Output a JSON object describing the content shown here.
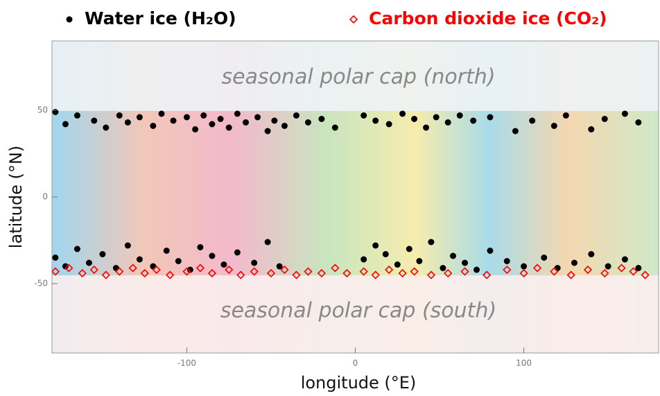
{
  "chart_data": {
    "type": "scatter",
    "xlabel": "longitude (°E)",
    "ylabel": "latitude (°N)",
    "annotations": [
      "seasonal polar cap (north)",
      "seasonal polar cap (south)"
    ],
    "xlim": [
      -180,
      180
    ],
    "ylim": [
      -90,
      90
    ],
    "xticks": [
      -100,
      0,
      100
    ],
    "yticks": [
      -50,
      0,
      50
    ],
    "series": [
      {
        "name": "Water ice (H₂O)",
        "color": "#000000",
        "marker": "circle",
        "x": [
          -178,
          -172,
          -165,
          -155,
          -148,
          -140,
          -135,
          -128,
          -120,
          -115,
          -108,
          -100,
          -95,
          -90,
          -85,
          -80,
          -75,
          -70,
          -65,
          -58,
          -52,
          -48,
          -42,
          -35,
          -28,
          -20,
          -12,
          5,
          12,
          20,
          28,
          35,
          42,
          48,
          55,
          62,
          70,
          80,
          95,
          105,
          118,
          125,
          140,
          148,
          160,
          168,
          -178,
          -172,
          -165,
          -158,
          -150,
          -142,
          -135,
          -128,
          -120,
          -112,
          -105,
          -98,
          -92,
          -85,
          -78,
          -70,
          -60,
          -52,
          -45,
          5,
          12,
          18,
          25,
          32,
          38,
          45,
          52,
          58,
          65,
          72,
          80,
          90,
          100,
          112,
          120,
          130,
          140,
          150,
          160,
          168
        ],
        "values": [
          49,
          42,
          47,
          44,
          40,
          47,
          43,
          46,
          41,
          48,
          44,
          46,
          39,
          47,
          42,
          45,
          40,
          48,
          43,
          46,
          38,
          44,
          41,
          47,
          43,
          45,
          40,
          47,
          44,
          42,
          48,
          45,
          40,
          46,
          43,
          47,
          44,
          46,
          38,
          44,
          41,
          47,
          39,
          45,
          48,
          43,
          -35,
          -40,
          -30,
          -38,
          -33,
          -41,
          -28,
          -36,
          -40,
          -31,
          -37,
          -42,
          -29,
          -34,
          -39,
          -32,
          -38,
          -26,
          -40,
          -36,
          -28,
          -33,
          -39,
          -30,
          -37,
          -26,
          -41,
          -34,
          -38,
          -42,
          -31,
          -37,
          -40,
          -35,
          -41,
          -38,
          -33,
          -40,
          -36,
          -41
        ]
      },
      {
        "name": "Carbon dioxide ice (CO₂)",
        "color": "#ff0000",
        "marker": "diamond",
        "x": [
          -178,
          -170,
          -162,
          -155,
          -148,
          -140,
          -132,
          -125,
          -118,
          -110,
          -100,
          -92,
          -85,
          -75,
          -68,
          -60,
          -50,
          -42,
          -35,
          -28,
          -20,
          -12,
          -5,
          5,
          12,
          20,
          28,
          35,
          45,
          55,
          65,
          78,
          90,
          100,
          108,
          118,
          128,
          138,
          148,
          158,
          165,
          172
        ],
        "values": [
          -43,
          -41,
          -44,
          -42,
          -45,
          -43,
          -41,
          -44,
          -42,
          -45,
          -43,
          -41,
          -44,
          -42,
          -45,
          -43,
          -44,
          -42,
          -45,
          -43,
          -44,
          -41,
          -44,
          -43,
          -45,
          -42,
          -44,
          -43,
          -45,
          -44,
          -43,
          -45,
          -42,
          -44,
          -41,
          -43,
          -45,
          -42,
          -44,
          -41,
          -43,
          -45
        ]
      }
    ]
  }
}
